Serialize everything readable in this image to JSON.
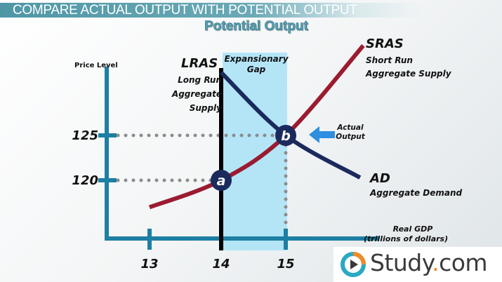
{
  "header": {
    "title": "COMPARE ACTUAL OUTPUT WITH POTENTIAL OUTPUT",
    "subtitle": "Potential Output"
  },
  "chart_data": {
    "type": "line",
    "xlabel": "Real GDP",
    "xlabel_unit": "(trillions of dollars)",
    "ylabel": "Price Level",
    "x_ticks": [
      "13",
      "14",
      "15"
    ],
    "y_ticks": [
      "125",
      "120"
    ],
    "grid": false,
    "series": [
      {
        "name": "SRAS",
        "description": "Short Run Aggregate Supply",
        "color": "#9b1b30",
        "points": [
          [
            13,
            117
          ],
          [
            14,
            120
          ],
          [
            15,
            125
          ],
          [
            16.2,
            135
          ]
        ]
      },
      {
        "name": "AD",
        "description": "Aggregate Demand",
        "color": "#1b2a5c",
        "points": [
          [
            14,
            132
          ],
          [
            15,
            125
          ],
          [
            16.15,
            120.3
          ]
        ]
      },
      {
        "name": "LRAS",
        "description": "Long Run Aggregate Supply",
        "color": "#000000",
        "x": 14
      }
    ],
    "shaded_region": {
      "label": "Expansionary Gap",
      "x_range": [
        14,
        15
      ],
      "color": "#b3e5f7"
    },
    "points": [
      {
        "label": "a",
        "x": 14,
        "y": 120
      },
      {
        "label": "b",
        "x": 15,
        "y": 125
      }
    ],
    "annotation": {
      "text_line1": "Actual",
      "text_line2": "Output",
      "points_to": "b",
      "color": "#2e8fe0"
    },
    "axis_color": "#1d7fa3"
  },
  "logo": {
    "text": "Study",
    "dot": ".",
    "suffix": "com"
  }
}
